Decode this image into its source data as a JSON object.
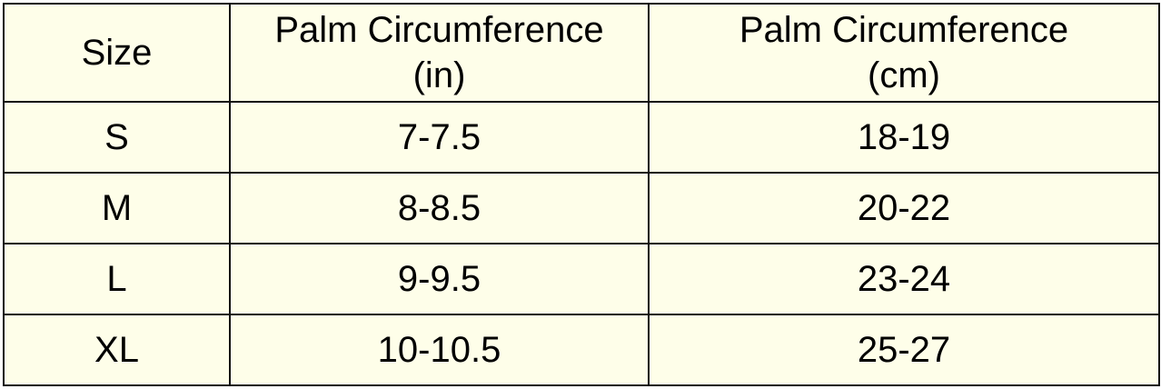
{
  "table": {
    "header": [
      "Size",
      "Palm Circumference (in)",
      "Palm Circumference (cm)"
    ],
    "rows": [
      [
        "S",
        "7-7.5",
        "18-19"
      ],
      [
        "M",
        "8-8.5",
        "20-22"
      ],
      [
        "L",
        "9-9.5",
        "23-24"
      ],
      [
        "XL",
        "10-10.5",
        "25-27"
      ]
    ]
  }
}
